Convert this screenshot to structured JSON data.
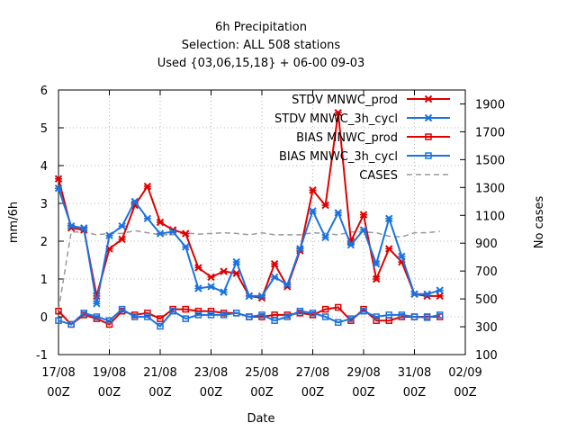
{
  "chart_data": {
    "type": "line",
    "title_lines": [
      "6h Precipitation",
      "Selection: ALL    508 stations",
      "Used {03,06,15,18} + 06-00 09-03"
    ],
    "xlabel": "Date",
    "ylabel": "mm/6h",
    "y2label": "No cases",
    "ylim": [
      -1,
      6
    ],
    "y2lim": [
      100,
      2000
    ],
    "xlim": [
      0,
      16
    ],
    "grid": true,
    "legend_position": "top-right",
    "x_ticks": [
      {
        "x": 0,
        "line1": "17/08",
        "line2": "00Z"
      },
      {
        "x": 2,
        "line1": "19/08",
        "line2": "00Z"
      },
      {
        "x": 4,
        "line1": "21/08",
        "line2": "00Z"
      },
      {
        "x": 6,
        "line1": "23/08",
        "line2": "00Z"
      },
      {
        "x": 8,
        "line1": "25/08",
        "line2": "00Z"
      },
      {
        "x": 10,
        "line1": "27/08",
        "line2": "00Z"
      },
      {
        "x": 12,
        "line1": "29/08",
        "line2": "00Z"
      },
      {
        "x": 14,
        "line1": "31/08",
        "line2": "00Z"
      },
      {
        "x": 16,
        "line1": "02/09",
        "line2": "00Z"
      }
    ],
    "y_ticks": [
      "-1",
      "0",
      "1",
      "2",
      "3",
      "4",
      "5",
      "6"
    ],
    "y2_ticks": [
      "100",
      "300",
      "500",
      "700",
      "900",
      "1100",
      "1300",
      "1500",
      "1700",
      "1900"
    ],
    "x": [
      0,
      0.5,
      1,
      1.5,
      2,
      2.5,
      3,
      3.5,
      4,
      4.5,
      5,
      5.5,
      6,
      6.5,
      7,
      7.5,
      8,
      8.5,
      9,
      9.5,
      10,
      10.5,
      11,
      11.5,
      12,
      12.5,
      13,
      13.5,
      14,
      14.5,
      15
    ],
    "series": [
      {
        "name": "STDV MNWC_prod",
        "axis": "y",
        "color": "#e00000",
        "marker": "x",
        "dashed": false,
        "values": [
          3.65,
          2.35,
          2.3,
          0.55,
          1.8,
          2.05,
          2.95,
          3.45,
          2.5,
          2.3,
          2.2,
          1.3,
          1.05,
          1.2,
          1.15,
          0.55,
          0.5,
          1.4,
          0.8,
          1.75,
          3.35,
          2.95,
          5.4,
          2.0,
          2.7,
          1.0,
          1.8,
          1.45,
          0.6,
          0.55,
          0.55
        ]
      },
      {
        "name": "STDV MNWC_3h_cycl",
        "axis": "y",
        "color": "#1a73e0",
        "marker": "x",
        "dashed": false,
        "values": [
          3.4,
          2.4,
          2.35,
          0.35,
          2.15,
          2.4,
          3.05,
          2.6,
          2.2,
          2.25,
          1.85,
          0.75,
          0.8,
          0.65,
          1.45,
          0.55,
          0.55,
          1.05,
          0.85,
          1.8,
          2.8,
          2.1,
          2.75,
          1.9,
          2.3,
          1.4,
          2.6,
          1.6,
          0.6,
          0.6,
          0.7
        ]
      },
      {
        "name": "BIAS MNWC_prod",
        "axis": "y",
        "color": "#e00000",
        "marker": "square",
        "dashed": false,
        "values": [
          0.15,
          -0.2,
          0.05,
          -0.05,
          -0.2,
          0.15,
          0.05,
          0.1,
          -0.05,
          0.2,
          0.2,
          0.15,
          0.15,
          0.1,
          0.1,
          0.0,
          0.0,
          0.05,
          0.05,
          0.1,
          0.05,
          0.2,
          0.25,
          -0.1,
          0.2,
          -0.1,
          -0.1,
          0.0,
          0.0,
          0.0,
          0.0
        ]
      },
      {
        "name": "BIAS MNWC_3h_cycl",
        "axis": "y",
        "color": "#1a73e0",
        "marker": "square",
        "dashed": false,
        "values": [
          -0.1,
          -0.2,
          0.1,
          0.0,
          -0.1,
          0.2,
          0.0,
          0.0,
          -0.25,
          0.15,
          -0.05,
          0.05,
          0.05,
          0.05,
          0.1,
          0.0,
          0.05,
          -0.1,
          0.0,
          0.15,
          0.1,
          0.0,
          -0.15,
          -0.05,
          0.15,
          0.0,
          0.05,
          0.05,
          0.0,
          -0.02,
          0.05
        ]
      },
      {
        "name": "CASES",
        "axis": "y2",
        "color": "#999999",
        "marker": "none",
        "dashed": true,
        "values": [
          420,
          980,
          980,
          960,
          970,
          970,
          990,
          975,
          960,
          960,
          975,
          965,
          970,
          975,
          970,
          960,
          975,
          960,
          960,
          960,
          975,
          970,
          960,
          980,
          980,
          975,
          950,
          945,
          975,
          975,
          985
        ]
      }
    ]
  }
}
